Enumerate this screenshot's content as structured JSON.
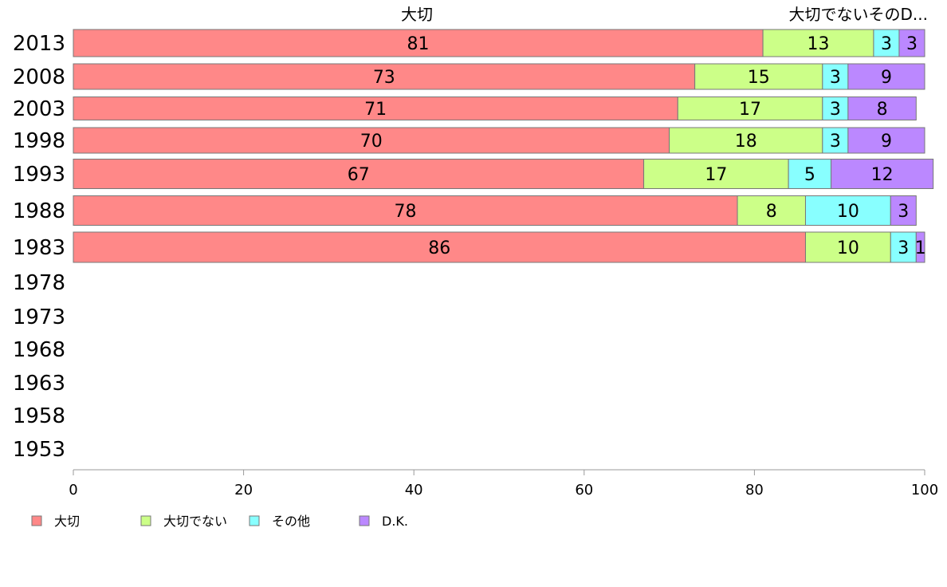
{
  "chart_data": {
    "type": "bar",
    "orientation": "horizontal",
    "stacked": true,
    "categories": [
      "2013",
      "2008",
      "2003",
      "1998",
      "1993",
      "1988",
      "1983",
      "1978",
      "1973",
      "1968",
      "1963",
      "1958",
      "1953"
    ],
    "series": [
      {
        "name": "大切",
        "color": "#ff8888",
        "values": [
          81,
          73,
          71,
          70,
          67,
          78,
          86,
          null,
          null,
          null,
          null,
          null,
          null
        ]
      },
      {
        "name": "大切でない",
        "color": "#ccff88",
        "values": [
          13,
          15,
          17,
          18,
          17,
          8,
          10,
          null,
          null,
          null,
          null,
          null,
          null
        ]
      },
      {
        "name": "その他",
        "color": "#88ffff",
        "values": [
          3,
          3,
          3,
          3,
          5,
          10,
          3,
          null,
          null,
          null,
          null,
          null,
          null
        ]
      },
      {
        "name": "D.K.",
        "color": "#bb88ff",
        "values": [
          3,
          9,
          8,
          9,
          12,
          3,
          1,
          null,
          null,
          null,
          null,
          null,
          null
        ]
      }
    ],
    "xlim": [
      0,
      100
    ],
    "xticks": [
      "0",
      "20",
      "40",
      "60",
      "80",
      "100"
    ],
    "top_labels": [
      "大切",
      "大切でないそのD..."
    ],
    "legend_position": "bottom-left",
    "grid": false
  }
}
